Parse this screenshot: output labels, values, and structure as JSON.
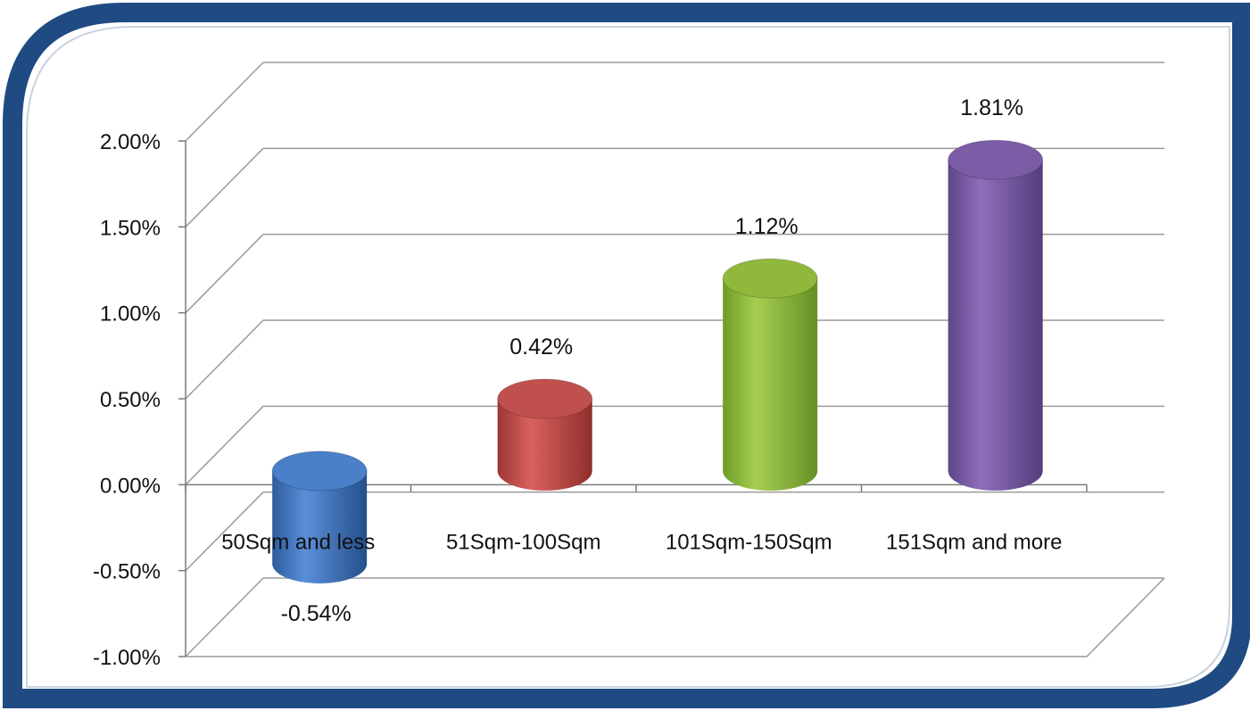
{
  "chart_data": {
    "type": "bar",
    "style": "3d-cylinder",
    "categories": [
      "50Sqm and less",
      "51Sqm-100Sqm",
      "101Sqm-150Sqm",
      "151Sqm and more"
    ],
    "values": [
      -0.54,
      0.42,
      1.12,
      1.81
    ],
    "value_unit": "%",
    "data_labels": [
      "-0.54%",
      "0.42%",
      "1.12%",
      "1.81%"
    ],
    "y_ticks": [
      "2.00%",
      "1.50%",
      "1.00%",
      "0.50%",
      "0.00%",
      "-0.50%",
      "-1.00%"
    ],
    "y_tick_values": [
      2.0,
      1.5,
      1.0,
      0.5,
      0.0,
      -0.5,
      -1.0
    ],
    "ylim": [
      -1.0,
      2.0
    ],
    "grid": true,
    "legend": "none",
    "title": "",
    "xlabel": "",
    "ylabel": "",
    "colors": [
      "#4a7fc9",
      "#c0504d",
      "#8fb83c",
      "#7b5ca6"
    ],
    "frame_color": "#1f4b82"
  }
}
